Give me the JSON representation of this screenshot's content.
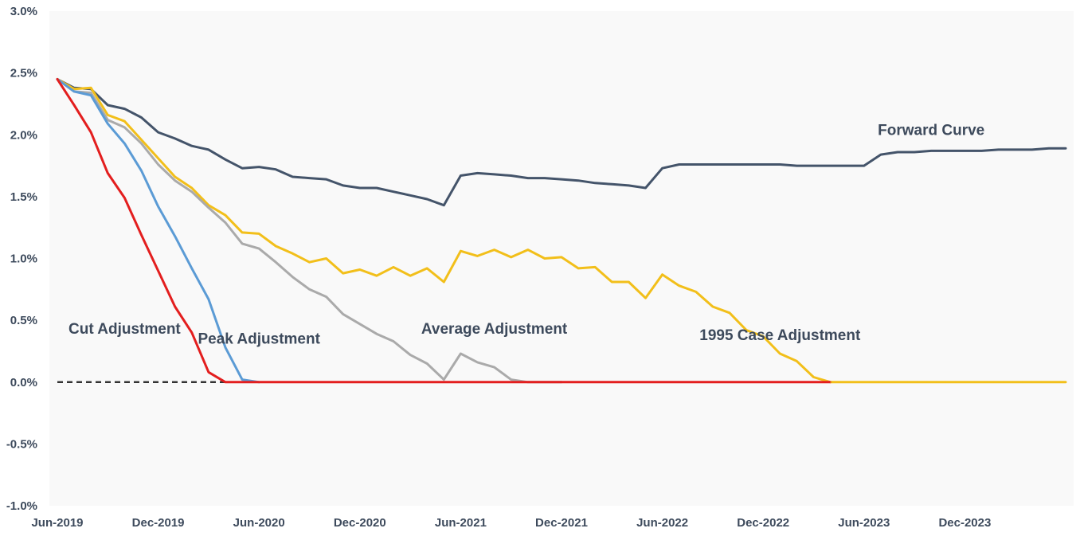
{
  "chart_data": {
    "type": "line",
    "title": "",
    "xlabel": "",
    "ylabel": "",
    "ylim": [
      -1.0,
      3.0
    ],
    "x_range": [
      "2019-06",
      "2024-06"
    ],
    "y_ticks": [
      "3.0%",
      "2.5%",
      "2.0%",
      "1.5%",
      "1.0%",
      "0.5%",
      "0.0%",
      "-0.5%",
      "-1.0%"
    ],
    "y_tick_values": [
      3.0,
      2.5,
      2.0,
      1.5,
      1.0,
      0.5,
      0.0,
      -0.5,
      -1.0
    ],
    "x_ticks": [
      "Jun-2019",
      "Dec-2019",
      "Jun-2020",
      "Dec-2020",
      "Jun-2021",
      "Dec-2021",
      "Jun-2022",
      "Dec-2022",
      "Jun-2023",
      "Dec-2023"
    ],
    "x_tick_dates": [
      "2019-06",
      "2019-12",
      "2020-06",
      "2020-12",
      "2021-06",
      "2021-12",
      "2022-06",
      "2022-12",
      "2023-06",
      "2023-12"
    ],
    "grid": false,
    "legend": "none",
    "background": "#f9f9f9",
    "zero_line": {
      "value": 0.0,
      "style": "dashed",
      "color": "#333333"
    },
    "series": [
      {
        "name": "Forward Curve",
        "color": "#44546a",
        "points": [
          [
            "2019-06",
            2.45
          ],
          [
            "2019-07",
            2.38
          ],
          [
            "2019-08",
            2.37
          ],
          [
            "2019-09",
            2.24
          ],
          [
            "2019-10",
            2.21
          ],
          [
            "2019-11",
            2.14
          ],
          [
            "2019-12",
            2.02
          ],
          [
            "2020-01",
            1.97
          ],
          [
            "2020-02",
            1.91
          ],
          [
            "2020-03",
            1.88
          ],
          [
            "2020-04",
            1.8
          ],
          [
            "2020-05",
            1.73
          ],
          [
            "2020-06",
            1.74
          ],
          [
            "2020-07",
            1.72
          ],
          [
            "2020-08",
            1.66
          ],
          [
            "2020-09",
            1.65
          ],
          [
            "2020-10",
            1.64
          ],
          [
            "2020-11",
            1.59
          ],
          [
            "2020-12",
            1.57
          ],
          [
            "2021-01",
            1.57
          ],
          [
            "2021-02",
            1.54
          ],
          [
            "2021-03",
            1.51
          ],
          [
            "2021-04",
            1.48
          ],
          [
            "2021-05",
            1.43
          ],
          [
            "2021-06",
            1.67
          ],
          [
            "2021-07",
            1.69
          ],
          [
            "2021-08",
            1.68
          ],
          [
            "2021-09",
            1.67
          ],
          [
            "2021-10",
            1.65
          ],
          [
            "2021-11",
            1.65
          ],
          [
            "2021-12",
            1.64
          ],
          [
            "2022-01",
            1.63
          ],
          [
            "2022-02",
            1.61
          ],
          [
            "2022-03",
            1.6
          ],
          [
            "2022-04",
            1.59
          ],
          [
            "2022-05",
            1.57
          ],
          [
            "2022-06",
            1.73
          ],
          [
            "2022-07",
            1.76
          ],
          [
            "2022-08",
            1.76
          ],
          [
            "2022-09",
            1.76
          ],
          [
            "2022-10",
            1.76
          ],
          [
            "2022-11",
            1.76
          ],
          [
            "2022-12",
            1.76
          ],
          [
            "2023-01",
            1.76
          ],
          [
            "2023-02",
            1.75
          ],
          [
            "2023-03",
            1.75
          ],
          [
            "2023-04",
            1.75
          ],
          [
            "2023-05",
            1.75
          ],
          [
            "2023-06",
            1.75
          ],
          [
            "2023-07",
            1.84
          ],
          [
            "2023-08",
            1.86
          ],
          [
            "2023-09",
            1.86
          ],
          [
            "2023-10",
            1.87
          ],
          [
            "2023-11",
            1.87
          ],
          [
            "2023-12",
            1.87
          ],
          [
            "2024-01",
            1.87
          ],
          [
            "2024-02",
            1.88
          ],
          [
            "2024-03",
            1.88
          ],
          [
            "2024-04",
            1.88
          ],
          [
            "2024-05",
            1.89
          ],
          [
            "2024-06",
            1.89
          ]
        ]
      },
      {
        "name": "1995 Case Adjustment",
        "color": "#f2bf1a",
        "points": [
          [
            "2019-06",
            2.45
          ],
          [
            "2019-07",
            2.37
          ],
          [
            "2019-08",
            2.38
          ],
          [
            "2019-09",
            2.16
          ],
          [
            "2019-10",
            2.11
          ],
          [
            "2019-11",
            1.96
          ],
          [
            "2019-12",
            1.81
          ],
          [
            "2020-01",
            1.66
          ],
          [
            "2020-02",
            1.57
          ],
          [
            "2020-03",
            1.43
          ],
          [
            "2020-04",
            1.35
          ],
          [
            "2020-05",
            1.21
          ],
          [
            "2020-06",
            1.2
          ],
          [
            "2020-07",
            1.1
          ],
          [
            "2020-08",
            1.04
          ],
          [
            "2020-09",
            0.97
          ],
          [
            "2020-10",
            1.0
          ],
          [
            "2020-11",
            0.88
          ],
          [
            "2020-12",
            0.91
          ],
          [
            "2021-01",
            0.86
          ],
          [
            "2021-02",
            0.93
          ],
          [
            "2021-03",
            0.86
          ],
          [
            "2021-04",
            0.92
          ],
          [
            "2021-05",
            0.81
          ],
          [
            "2021-06",
            1.06
          ],
          [
            "2021-07",
            1.02
          ],
          [
            "2021-08",
            1.07
          ],
          [
            "2021-09",
            1.01
          ],
          [
            "2021-10",
            1.07
          ],
          [
            "2021-11",
            1.0
          ],
          [
            "2021-12",
            1.01
          ],
          [
            "2022-01",
            0.92
          ],
          [
            "2022-02",
            0.93
          ],
          [
            "2022-03",
            0.81
          ],
          [
            "2022-04",
            0.81
          ],
          [
            "2022-05",
            0.68
          ],
          [
            "2022-06",
            0.87
          ],
          [
            "2022-07",
            0.78
          ],
          [
            "2022-08",
            0.73
          ],
          [
            "2022-09",
            0.61
          ],
          [
            "2022-10",
            0.56
          ],
          [
            "2022-11",
            0.42
          ],
          [
            "2022-12",
            0.37
          ],
          [
            "2023-01",
            0.23
          ],
          [
            "2023-02",
            0.17
          ],
          [
            "2023-03",
            0.04
          ],
          [
            "2023-04",
            0.0
          ],
          [
            "2023-05",
            0.0
          ],
          [
            "2023-06",
            0.0
          ],
          [
            "2023-07",
            0.0
          ],
          [
            "2023-08",
            0.0
          ],
          [
            "2023-09",
            0.0
          ],
          [
            "2023-10",
            0.0
          ],
          [
            "2023-11",
            0.0
          ],
          [
            "2023-12",
            0.0
          ],
          [
            "2024-01",
            0.0
          ],
          [
            "2024-02",
            0.0
          ],
          [
            "2024-03",
            0.0
          ],
          [
            "2024-04",
            0.0
          ],
          [
            "2024-05",
            0.0
          ],
          [
            "2024-06",
            0.0
          ]
        ]
      },
      {
        "name": "Average Adjustment",
        "color": "#aaaaaa",
        "points": [
          [
            "2019-06",
            2.45
          ],
          [
            "2019-07",
            2.35
          ],
          [
            "2019-08",
            2.34
          ],
          [
            "2019-09",
            2.12
          ],
          [
            "2019-10",
            2.06
          ],
          [
            "2019-11",
            1.93
          ],
          [
            "2019-12",
            1.76
          ],
          [
            "2020-01",
            1.63
          ],
          [
            "2020-02",
            1.54
          ],
          [
            "2020-03",
            1.41
          ],
          [
            "2020-04",
            1.29
          ],
          [
            "2020-05",
            1.12
          ],
          [
            "2020-06",
            1.08
          ],
          [
            "2020-07",
            0.97
          ],
          [
            "2020-08",
            0.85
          ],
          [
            "2020-09",
            0.75
          ],
          [
            "2020-10",
            0.69
          ],
          [
            "2020-11",
            0.55
          ],
          [
            "2020-12",
            0.47
          ],
          [
            "2021-01",
            0.39
          ],
          [
            "2021-02",
            0.33
          ],
          [
            "2021-03",
            0.22
          ],
          [
            "2021-04",
            0.15
          ],
          [
            "2021-05",
            0.02
          ],
          [
            "2021-06",
            0.23
          ],
          [
            "2021-07",
            0.16
          ],
          [
            "2021-08",
            0.12
          ],
          [
            "2021-09",
            0.02
          ],
          [
            "2021-10",
            0.0
          ],
          [
            "2021-11",
            0.0
          ],
          [
            "2021-12",
            0.0
          ]
        ]
      },
      {
        "name": "Peak Adjustment",
        "color": "#5b9bd5",
        "points": [
          [
            "2019-06",
            2.45
          ],
          [
            "2019-07",
            2.35
          ],
          [
            "2019-08",
            2.32
          ],
          [
            "2019-09",
            2.09
          ],
          [
            "2019-10",
            1.93
          ],
          [
            "2019-11",
            1.71
          ],
          [
            "2019-12",
            1.42
          ],
          [
            "2020-01",
            1.18
          ],
          [
            "2020-02",
            0.92
          ],
          [
            "2020-03",
            0.67
          ],
          [
            "2020-04",
            0.28
          ],
          [
            "2020-05",
            0.02
          ],
          [
            "2020-06",
            0.0
          ]
        ]
      },
      {
        "name": "Cut Adjustment",
        "color": "#e31e1e",
        "points": [
          [
            "2019-06",
            2.45
          ],
          [
            "2019-07",
            2.24
          ],
          [
            "2019-08",
            2.02
          ],
          [
            "2019-09",
            1.69
          ],
          [
            "2019-10",
            1.49
          ],
          [
            "2019-11",
            1.19
          ],
          [
            "2019-12",
            0.9
          ],
          [
            "2020-01",
            0.61
          ],
          [
            "2020-02",
            0.4
          ],
          [
            "2020-03",
            0.08
          ],
          [
            "2020-04",
            0.0
          ],
          [
            "2020-05",
            0.0
          ],
          [
            "2020-06",
            0.0
          ],
          [
            "2020-07",
            0.0
          ],
          [
            "2020-08",
            0.0
          ],
          [
            "2020-09",
            0.0
          ],
          [
            "2020-10",
            0.0
          ],
          [
            "2020-11",
            0.0
          ],
          [
            "2020-12",
            0.0
          ],
          [
            "2021-01",
            0.0
          ],
          [
            "2021-02",
            0.0
          ],
          [
            "2021-03",
            0.0
          ],
          [
            "2021-04",
            0.0
          ],
          [
            "2021-05",
            0.0
          ],
          [
            "2021-06",
            0.0
          ],
          [
            "2021-07",
            0.0
          ],
          [
            "2021-08",
            0.0
          ],
          [
            "2021-09",
            0.0
          ],
          [
            "2021-10",
            0.0
          ],
          [
            "2021-11",
            0.0
          ],
          [
            "2021-12",
            0.0
          ],
          [
            "2022-01",
            0.0
          ],
          [
            "2022-02",
            0.0
          ],
          [
            "2022-03",
            0.0
          ],
          [
            "2022-04",
            0.0
          ],
          [
            "2022-05",
            0.0
          ],
          [
            "2022-06",
            0.0
          ],
          [
            "2022-07",
            0.0
          ],
          [
            "2022-08",
            0.0
          ],
          [
            "2022-09",
            0.0
          ],
          [
            "2022-10",
            0.0
          ],
          [
            "2022-11",
            0.0
          ],
          [
            "2022-12",
            0.0
          ],
          [
            "2023-01",
            0.0
          ],
          [
            "2023-02",
            0.0
          ],
          [
            "2023-03",
            0.0
          ],
          [
            "2023-04",
            0.0
          ]
        ]
      }
    ],
    "annotations": [
      {
        "text": "Forward Curve",
        "series": "Forward Curve",
        "at": [
          "2023-10",
          2.0
        ]
      },
      {
        "text": "1995 Case Adjustment",
        "series": "1995 Case Adjustment",
        "at": [
          "2023-01",
          0.34
        ]
      },
      {
        "text": "Average Adjustment",
        "series": "Average Adjustment",
        "at": [
          "2021-08",
          0.39
        ]
      },
      {
        "text": "Peak Adjustment",
        "series": "Peak Adjustment",
        "at": [
          "2020-06",
          0.31
        ]
      },
      {
        "text": "Cut Adjustment",
        "series": "Cut Adjustment",
        "at": [
          "2019-10",
          0.39
        ]
      }
    ]
  }
}
